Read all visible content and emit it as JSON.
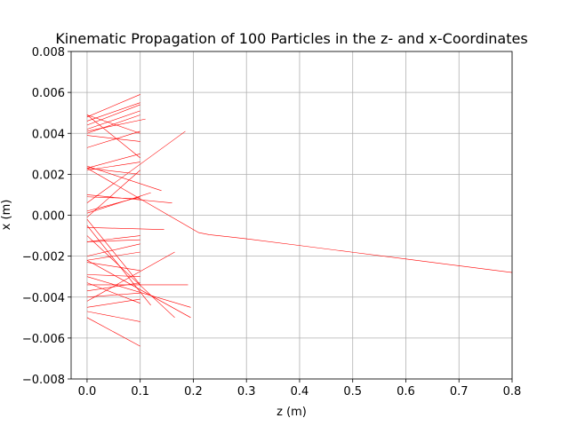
{
  "chart_data": {
    "type": "line",
    "title": "Kinematic Propagation of 100 Particles in the z- and x-Coordinates",
    "xlabel": "z (m)",
    "ylabel": "x (m)",
    "xlim": [
      -0.03,
      0.8
    ],
    "ylim": [
      -0.008,
      0.008
    ],
    "xticks": [
      0.0,
      0.1,
      0.2,
      0.3,
      0.4,
      0.5,
      0.6,
      0.7,
      0.8
    ],
    "xtick_labels": [
      "0.0",
      "0.1",
      "0.2",
      "0.3",
      "0.4",
      "0.5",
      "0.6",
      "0.7",
      "0.8"
    ],
    "yticks": [
      -0.008,
      -0.006,
      -0.004,
      -0.002,
      0.0,
      0.002,
      0.004,
      0.006,
      0.008
    ],
    "ytick_labels": [
      "−0.008",
      "−0.006",
      "−0.004",
      "−0.002",
      "0.000",
      "0.002",
      "0.004",
      "0.006",
      "0.008"
    ],
    "grid": true,
    "line_color": "#ff0000",
    "series": [
      {
        "x": [
          0.0,
          0.1
        ],
        "y": [
          0.0048,
          0.0059
        ]
      },
      {
        "x": [
          0.0,
          0.1
        ],
        "y": [
          0.0046,
          0.0055
        ]
      },
      {
        "x": [
          0.0,
          0.1
        ],
        "y": [
          0.0044,
          0.0054
        ]
      },
      {
        "x": [
          0.0,
          0.1
        ],
        "y": [
          0.0042,
          0.0051
        ]
      },
      {
        "x": [
          0.0,
          0.11
        ],
        "y": [
          0.0041,
          0.0047
        ]
      },
      {
        "x": [
          0.0,
          0.1
        ],
        "y": [
          0.0049,
          0.004
        ]
      },
      {
        "x": [
          0.0,
          0.1
        ],
        "y": [
          0.004,
          0.0049
        ]
      },
      {
        "x": [
          0.0,
          0.1
        ],
        "y": [
          0.0039,
          0.0036
        ]
      },
      {
        "x": [
          0.0,
          0.1
        ],
        "y": [
          0.0033,
          0.0041
        ]
      },
      {
        "x": [
          0.0,
          0.1
        ],
        "y": [
          0.0049,
          0.0028
        ]
      },
      {
        "x": [
          0.0,
          0.185
        ],
        "y": [
          0.0006,
          0.0041
        ]
      },
      {
        "x": [
          0.0,
          0.1
        ],
        "y": [
          0.0023,
          0.003
        ]
      },
      {
        "x": [
          0.0,
          0.14
        ],
        "y": [
          0.0024,
          0.0012
        ]
      },
      {
        "x": [
          0.0,
          0.1
        ],
        "y": [
          0.0023,
          0.002
        ]
      },
      {
        "x": [
          0.0,
          0.1
        ],
        "y": [
          0.0022,
          0.0026
        ]
      },
      {
        "x": [
          0.0,
          0.1
        ],
        "y": [
          0.0009,
          0.0008
        ]
      },
      {
        "x": [
          0.0,
          0.12
        ],
        "y": [
          0.0001,
          0.0011
        ]
      },
      {
        "x": [
          0.0,
          0.1
        ],
        "y": [
          0.0002,
          0.0009
        ]
      },
      {
        "x": [
          0.0,
          0.16
        ],
        "y": [
          0.001,
          0.0006
        ]
      },
      {
        "x": [
          0.0,
          0.21,
          0.23,
          0.3,
          0.4,
          0.5,
          0.6,
          0.7,
          0.8
        ],
        "y": [
          0.0023,
          -0.00085,
          -0.00095,
          -0.00115,
          -0.00148,
          -0.00181,
          -0.00214,
          -0.00247,
          -0.0028
        ]
      },
      {
        "x": [
          0.0,
          0.1
        ],
        "y": [
          -0.0001,
          0.0022
        ]
      },
      {
        "x": [
          0.0,
          0.145
        ],
        "y": [
          -0.0006,
          -0.0007
        ]
      },
      {
        "x": [
          0.0,
          0.1
        ],
        "y": [
          -0.0013,
          -0.001
        ]
      },
      {
        "x": [
          0.0,
          0.1
        ],
        "y": [
          -0.0013,
          -0.0012
        ]
      },
      {
        "x": [
          0.0,
          0.1
        ],
        "y": [
          -0.0002,
          -0.0034
        ]
      },
      {
        "x": [
          0.0,
          0.12
        ],
        "y": [
          -0.0005,
          -0.0044
        ]
      },
      {
        "x": [
          0.0,
          0.165
        ],
        "y": [
          -0.001,
          -0.005
        ]
      },
      {
        "x": [
          0.0,
          0.1
        ],
        "y": [
          -0.002,
          -0.0014
        ]
      },
      {
        "x": [
          0.0,
          0.1
        ],
        "y": [
          -0.0022,
          -0.0018
        ]
      },
      {
        "x": [
          0.0,
          0.1
        ],
        "y": [
          -0.0023,
          -0.0027
        ]
      },
      {
        "x": [
          0.0,
          0.165
        ],
        "y": [
          -0.0042,
          -0.0018
        ]
      },
      {
        "x": [
          0.0,
          0.195
        ],
        "y": [
          -0.0022,
          -0.005
        ]
      },
      {
        "x": [
          0.0,
          0.195
        ],
        "y": [
          -0.003,
          -0.0045
        ]
      },
      {
        "x": [
          0.0,
          0.1
        ],
        "y": [
          -0.0029,
          -0.003
        ]
      },
      {
        "x": [
          0.0,
          0.19
        ],
        "y": [
          -0.0034,
          -0.0034
        ]
      },
      {
        "x": [
          0.0,
          0.1
        ],
        "y": [
          -0.0037,
          -0.0033
        ]
      },
      {
        "x": [
          0.0,
          0.1
        ],
        "y": [
          -0.004,
          -0.0038
        ]
      },
      {
        "x": [
          0.0,
          0.1
        ],
        "y": [
          -0.0033,
          -0.0043
        ]
      },
      {
        "x": [
          0.0,
          0.1
        ],
        "y": [
          -0.0045,
          -0.0041
        ]
      },
      {
        "x": [
          0.0,
          0.1
        ],
        "y": [
          -0.0047,
          -0.0052
        ]
      },
      {
        "x": [
          0.0,
          0.1
        ],
        "y": [
          -0.005,
          -0.0064
        ]
      }
    ]
  }
}
